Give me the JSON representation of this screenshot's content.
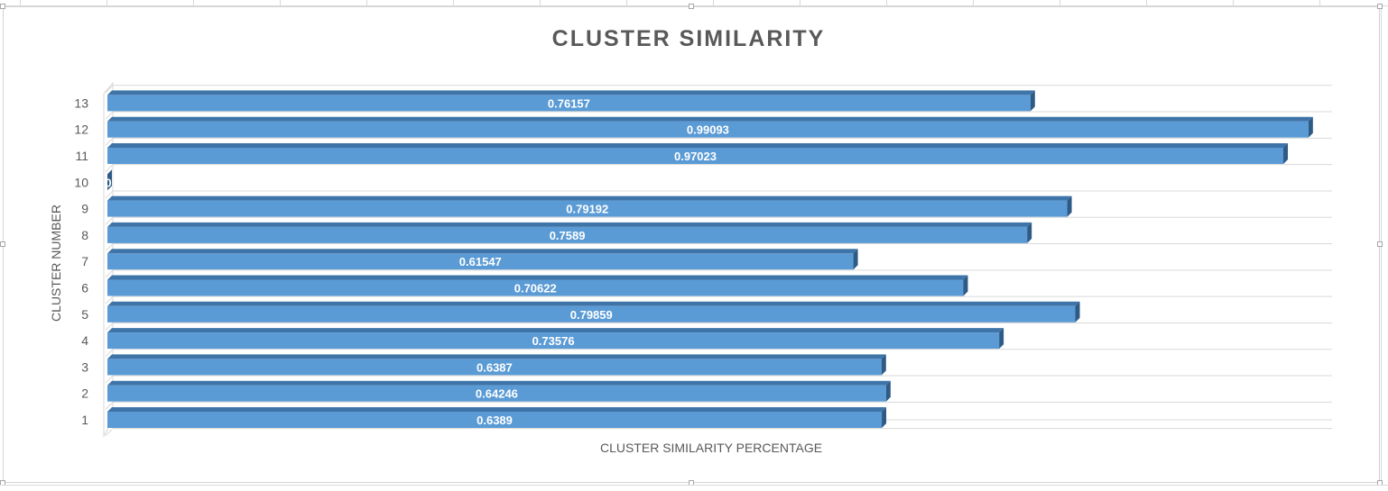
{
  "chart_data": {
    "type": "bar",
    "orientation": "horizontal",
    "style": "3d-clustered-bar",
    "title": "CLUSTER SIMILARITY",
    "xlabel": "CLUSTER SIMILARITY PERCENTAGE",
    "ylabel": "CLUSTER NUMBER",
    "categories": [
      "1",
      "2",
      "3",
      "4",
      "5",
      "6",
      "7",
      "8",
      "9",
      "10",
      "11",
      "12",
      "13"
    ],
    "values": [
      0.6389,
      0.64246,
      0.6387,
      0.73576,
      0.79859,
      0.70622,
      0.61547,
      0.7589,
      0.79192,
      0,
      0.97023,
      0.99093,
      0.76157
    ],
    "data_labels": [
      "0.6389",
      "0.64246",
      "0.6387",
      "0.73576",
      "0.79859",
      "0.70622",
      "0.61547",
      "0.7589",
      "0.79192",
      "0",
      "0.97023",
      "0.99093",
      "0.76157"
    ],
    "xlim": [
      0,
      1
    ],
    "grid": true,
    "legend": "none",
    "colors": {
      "bar_front": "#5b9bd5",
      "bar_top": "#3f74a8",
      "bar_side": "#2e5a86",
      "label_text": "#ffffff",
      "title_text": "#595959",
      "axis_text": "#595959",
      "gridline": "#d9d9d9"
    }
  }
}
